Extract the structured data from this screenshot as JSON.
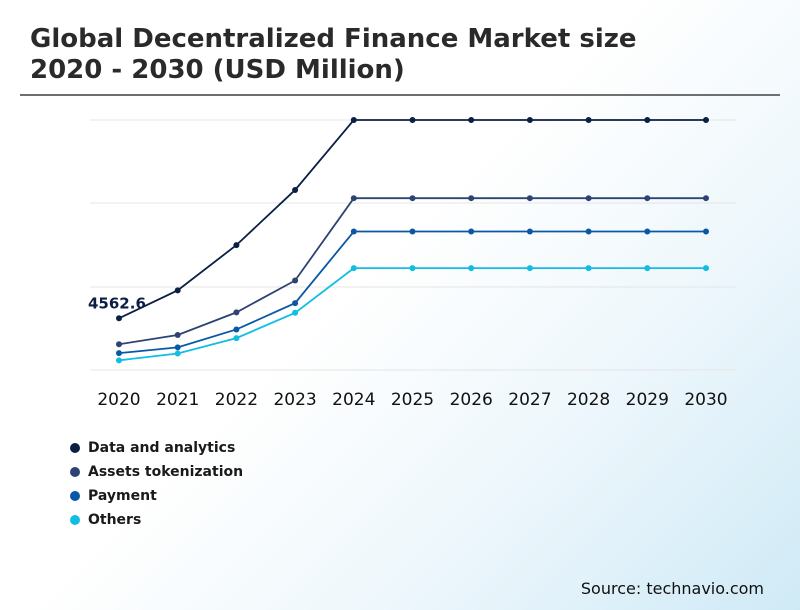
{
  "chart_data": {
    "type": "line",
    "title": "Global Decentralized Finance Market size",
    "subtitle": "2020 - 2030 (USD Million)",
    "xlabel": "",
    "ylabel": "",
    "categories": [
      "2020",
      "2021",
      "2022",
      "2023",
      "2024",
      "2025",
      "2026",
      "2027",
      "2028",
      "2029",
      "2030"
    ],
    "series": [
      {
        "name": "Data and analytics",
        "color": "#0b1f44",
        "values": [
          4562.6,
          5920,
          8120,
          10800,
          14200,
          14200,
          14200,
          14200,
          14200,
          14200,
          14200
        ]
      },
      {
        "name": "Assets tokenization",
        "color": "#2e4373",
        "values": [
          3300,
          3750,
          4850,
          6400,
          10400,
          10400,
          10400,
          10400,
          10400,
          10400,
          10400
        ]
      },
      {
        "name": "Payment",
        "color": "#0a58a5",
        "values": [
          2870,
          3150,
          4020,
          5300,
          8780,
          8780,
          8780,
          8780,
          8780,
          8780,
          8780
        ]
      },
      {
        "name": "Others",
        "color": "#12bde3",
        "values": [
          2520,
          2850,
          3600,
          4830,
          7000,
          7000,
          7000,
          7000,
          7000,
          7000,
          7000
        ]
      }
    ],
    "annotations": [
      {
        "series": 0,
        "index": 0,
        "text": "4562.6"
      }
    ],
    "ylim": [
      2050,
      14200
    ],
    "grid": true,
    "legend": "bottom-left"
  },
  "footer": {
    "source": "Source: technavio.com"
  }
}
